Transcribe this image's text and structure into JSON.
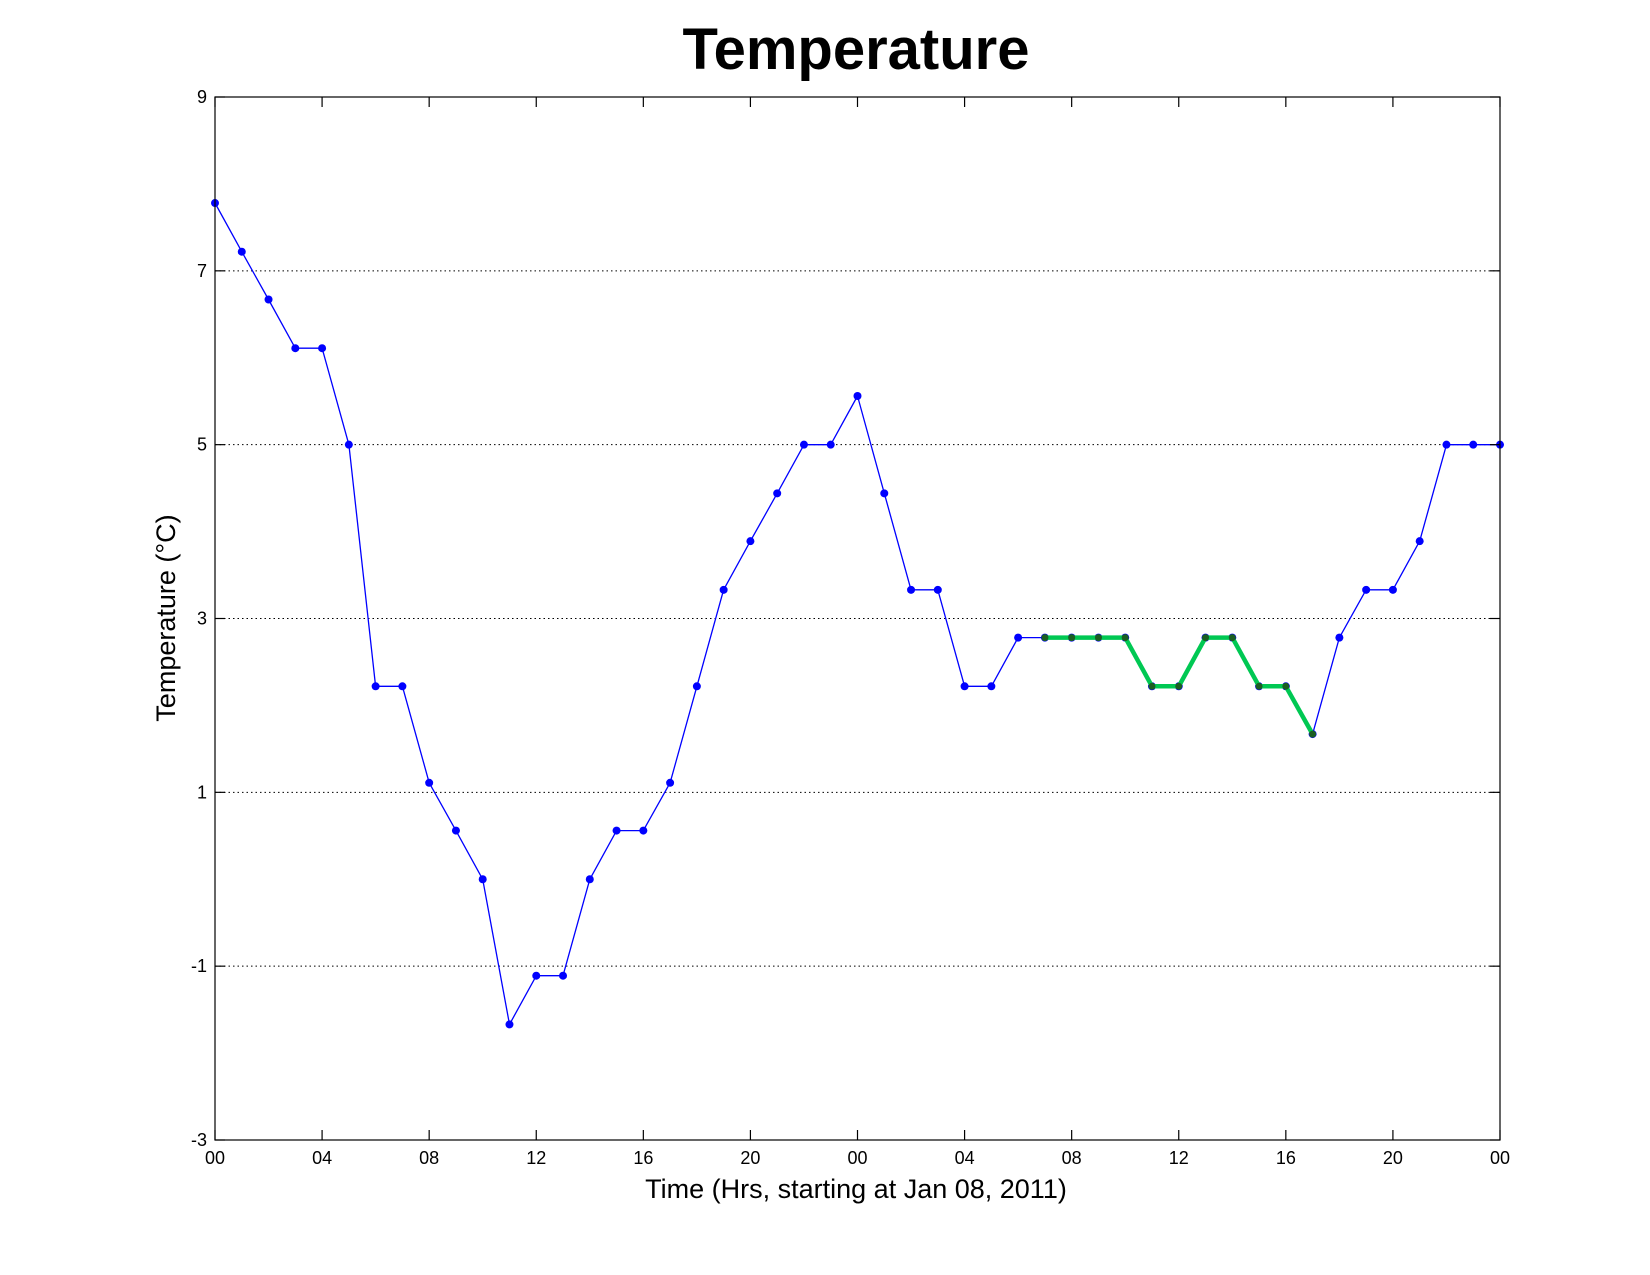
{
  "chart_data": {
    "type": "line",
    "title": "Temperature",
    "xlabel": "Time (Hrs, starting at Jan 08, 2011)",
    "ylabel": "Temperature (°C)",
    "ylim": [
      -3,
      9
    ],
    "xlim": [
      0,
      48
    ],
    "yticks": [
      -3,
      -1,
      1,
      3,
      5,
      7,
      9
    ],
    "xticks": [
      0,
      4,
      8,
      12,
      16,
      20,
      24,
      28,
      32,
      36,
      40,
      44,
      48
    ],
    "xtick_labels": [
      "00",
      "04",
      "08",
      "12",
      "16",
      "20",
      "00",
      "04",
      "08",
      "12",
      "16",
      "20",
      "00"
    ],
    "grid": "horizontal dotted",
    "series": [
      {
        "color": "#0000ff",
        "x": [
          0,
          1,
          2,
          3,
          4,
          5,
          6,
          7,
          8,
          9,
          10,
          11,
          12,
          13,
          14,
          15,
          16,
          17,
          18,
          19,
          20,
          21,
          22,
          23,
          24,
          25,
          26,
          27,
          28,
          29,
          30,
          31,
          32,
          33,
          34,
          35,
          36,
          37,
          38,
          39,
          40,
          41,
          42,
          43,
          44,
          45,
          46,
          47,
          48
        ],
        "values": [
          7.78,
          7.22,
          6.67,
          6.11,
          6.11,
          5.0,
          2.22,
          2.22,
          1.11,
          0.56,
          0.0,
          -1.67,
          -1.11,
          -1.11,
          0.0,
          0.56,
          0.56,
          1.11,
          2.22,
          3.33,
          3.89,
          4.44,
          5.0,
          5.0,
          5.56,
          4.44,
          3.33,
          3.33,
          2.22,
          2.22,
          2.78,
          2.78,
          2.78,
          2.78,
          2.78,
          2.22,
          2.22,
          2.78,
          2.78,
          2.22,
          2.22,
          1.67,
          2.78,
          3.33,
          3.33,
          3.89,
          5.0,
          5.0,
          5.0
        ]
      },
      {
        "color": "#00c853",
        "marker_color": "#1b5e20",
        "x": [
          31,
          32,
          33,
          34,
          35,
          36,
          37,
          38,
          39,
          40,
          41
        ],
        "values": [
          2.78,
          2.78,
          2.78,
          2.78,
          2.22,
          2.22,
          2.78,
          2.78,
          2.22,
          2.22,
          1.67
        ]
      }
    ]
  }
}
